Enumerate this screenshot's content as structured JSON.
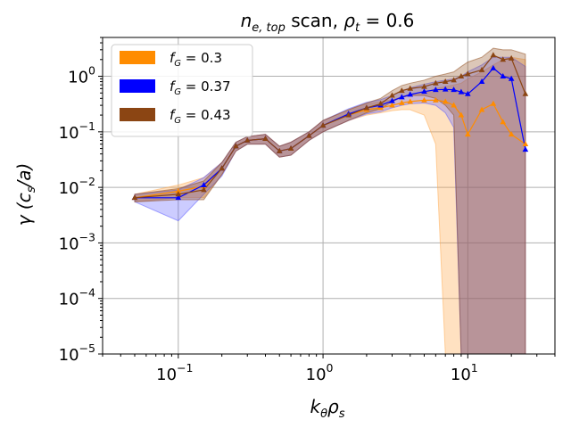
{
  "chart_data": {
    "type": "line",
    "title_parts": {
      "var": "n",
      "sub": "e, top",
      "mid": " scan, ",
      "rho": "ρ",
      "rho_sub": "t",
      "eq": " = 0.6"
    },
    "xlabel_parts": {
      "k": "k",
      "k_sub": "θ",
      "rho": "ρ",
      "rho_sub": "s"
    },
    "ylabel_parts": {
      "gamma": "γ (c",
      "sub": "s",
      "tail": "/a)"
    },
    "x_scale": "log",
    "y_scale": "log",
    "xlim": [
      0.03,
      40
    ],
    "ylim": [
      1e-05,
      5
    ],
    "grid": true,
    "legend_position": "top-left",
    "x_ticks": [
      {
        "value": 0.1,
        "base": "10",
        "exp": "−1"
      },
      {
        "value": 1,
        "base": "10",
        "exp": "0"
      },
      {
        "value": 10,
        "base": "10",
        "exp": "1"
      }
    ],
    "y_ticks": [
      {
        "value": 1e-05,
        "base": "10",
        "exp": "−5"
      },
      {
        "value": 0.0001,
        "base": "10",
        "exp": "−4"
      },
      {
        "value": 0.001,
        "base": "10",
        "exp": "−3"
      },
      {
        "value": 0.01,
        "base": "10",
        "exp": "−2"
      },
      {
        "value": 0.1,
        "base": "10",
        "exp": "−1"
      },
      {
        "value": 1,
        "base": "10",
        "exp": "0"
      }
    ],
    "series": [
      {
        "name": "f_G = 0.3",
        "legend_f": "f",
        "legend_sub": "G",
        "legend_eq": " = 0.3",
        "color": "#ff8c00",
        "band_color": "#ffa94d",
        "marker": "triangle",
        "x": [
          0.05,
          0.1,
          0.15,
          0.2,
          0.25,
          0.3,
          0.4,
          0.5,
          0.6,
          0.8,
          1.0,
          1.5,
          2.0,
          2.5,
          3.0,
          3.5,
          4.0,
          5.0,
          6.0,
          7.0,
          8.0,
          9.0,
          10.0,
          12.5,
          15.0,
          17.5,
          20.0,
          25.0
        ],
        "y": [
          0.0065,
          0.0085,
          0.0105,
          0.022,
          0.055,
          0.07,
          0.075,
          0.045,
          0.05,
          0.085,
          0.13,
          0.2,
          0.25,
          0.27,
          0.3,
          0.33,
          0.35,
          0.37,
          0.37,
          0.35,
          0.3,
          0.2,
          0.09,
          0.25,
          0.32,
          0.15,
          0.09,
          0.06
        ],
        "y_lower": [
          0.0055,
          0.0065,
          0.0065,
          0.017,
          0.045,
          0.06,
          0.06,
          0.035,
          0.038,
          0.07,
          0.1,
          0.16,
          0.2,
          0.22,
          0.24,
          0.25,
          0.25,
          0.2,
          0.06,
          6e-06,
          6e-06,
          6e-06,
          6e-06,
          6e-06,
          6e-06,
          6e-06,
          6e-06,
          6e-06
        ],
        "y_upper": [
          0.0075,
          0.011,
          0.015,
          0.028,
          0.065,
          0.082,
          0.09,
          0.055,
          0.065,
          0.1,
          0.16,
          0.25,
          0.32,
          0.35,
          0.38,
          0.42,
          0.45,
          0.5,
          0.6,
          0.65,
          0.7,
          0.75,
          0.9,
          1.2,
          1.6,
          2.0,
          2.2,
          2.0
        ]
      },
      {
        "name": "f_G = 0.37",
        "legend_f": "f",
        "legend_sub": "G",
        "legend_eq": " = 0.37",
        "color": "#0000ff",
        "band_color": "#5555ff",
        "marker": "triangle",
        "x": [
          0.05,
          0.1,
          0.15,
          0.2,
          0.25,
          0.3,
          0.4,
          0.5,
          0.6,
          0.8,
          1.0,
          1.5,
          2.0,
          2.5,
          3.0,
          3.5,
          4.0,
          5.0,
          6.0,
          7.0,
          8.0,
          9.0,
          10.0,
          12.5,
          15.0,
          17.5,
          20.0,
          25.0
        ],
        "y": [
          0.0065,
          0.0065,
          0.011,
          0.022,
          0.055,
          0.07,
          0.075,
          0.045,
          0.05,
          0.085,
          0.13,
          0.21,
          0.27,
          0.3,
          0.36,
          0.42,
          0.47,
          0.53,
          0.57,
          0.58,
          0.57,
          0.52,
          0.48,
          0.8,
          1.4,
          1.0,
          0.9,
          0.048
        ],
        "y_lower": [
          0.0055,
          0.0025,
          0.0075,
          0.016,
          0.045,
          0.06,
          0.06,
          0.035,
          0.038,
          0.07,
          0.1,
          0.16,
          0.21,
          0.23,
          0.27,
          0.3,
          0.32,
          0.33,
          0.3,
          0.22,
          0.12,
          6e-06,
          6e-06,
          6e-06,
          6e-06,
          6e-06,
          6e-06,
          6e-06
        ],
        "y_upper": [
          0.0075,
          0.009,
          0.015,
          0.028,
          0.065,
          0.082,
          0.09,
          0.055,
          0.065,
          0.1,
          0.16,
          0.26,
          0.34,
          0.38,
          0.45,
          0.55,
          0.62,
          0.72,
          0.8,
          0.85,
          0.9,
          1.0,
          1.2,
          1.6,
          2.2,
          2.2,
          2.2,
          1.5
        ]
      },
      {
        "name": "f_G = 0.43",
        "legend_f": "f",
        "legend_sub": "G",
        "legend_eq": " = 0.43",
        "color": "#8b4513",
        "band_color": "#8b4513",
        "marker": "triangle",
        "x": [
          0.05,
          0.1,
          0.15,
          0.2,
          0.25,
          0.3,
          0.4,
          0.5,
          0.6,
          0.8,
          1.0,
          1.5,
          2.0,
          2.5,
          3.0,
          3.5,
          4.0,
          5.0,
          6.0,
          7.0,
          8.0,
          9.0,
          10.0,
          12.5,
          15.0,
          17.5,
          20.0,
          25.0
        ],
        "y": [
          0.0065,
          0.0075,
          0.009,
          0.022,
          0.055,
          0.07,
          0.075,
          0.045,
          0.05,
          0.085,
          0.13,
          0.2,
          0.27,
          0.32,
          0.45,
          0.55,
          0.6,
          0.65,
          0.75,
          0.8,
          0.85,
          1.0,
          1.1,
          1.3,
          2.4,
          2.0,
          2.1,
          0.48
        ],
        "y_lower": [
          0.0055,
          0.006,
          0.006,
          0.017,
          0.045,
          0.06,
          0.06,
          0.035,
          0.038,
          0.07,
          0.1,
          0.16,
          0.22,
          0.26,
          0.35,
          0.42,
          0.45,
          0.45,
          0.4,
          0.3,
          0.2,
          6e-06,
          6e-06,
          6e-06,
          6e-06,
          6e-06,
          6e-06,
          6e-06
        ],
        "y_upper": [
          0.0075,
          0.0095,
          0.013,
          0.028,
          0.065,
          0.082,
          0.09,
          0.055,
          0.065,
          0.1,
          0.16,
          0.25,
          0.33,
          0.4,
          0.55,
          0.68,
          0.75,
          0.85,
          1.0,
          1.1,
          1.2,
          1.5,
          1.8,
          2.2,
          3.2,
          3.0,
          3.0,
          2.5
        ]
      }
    ]
  }
}
